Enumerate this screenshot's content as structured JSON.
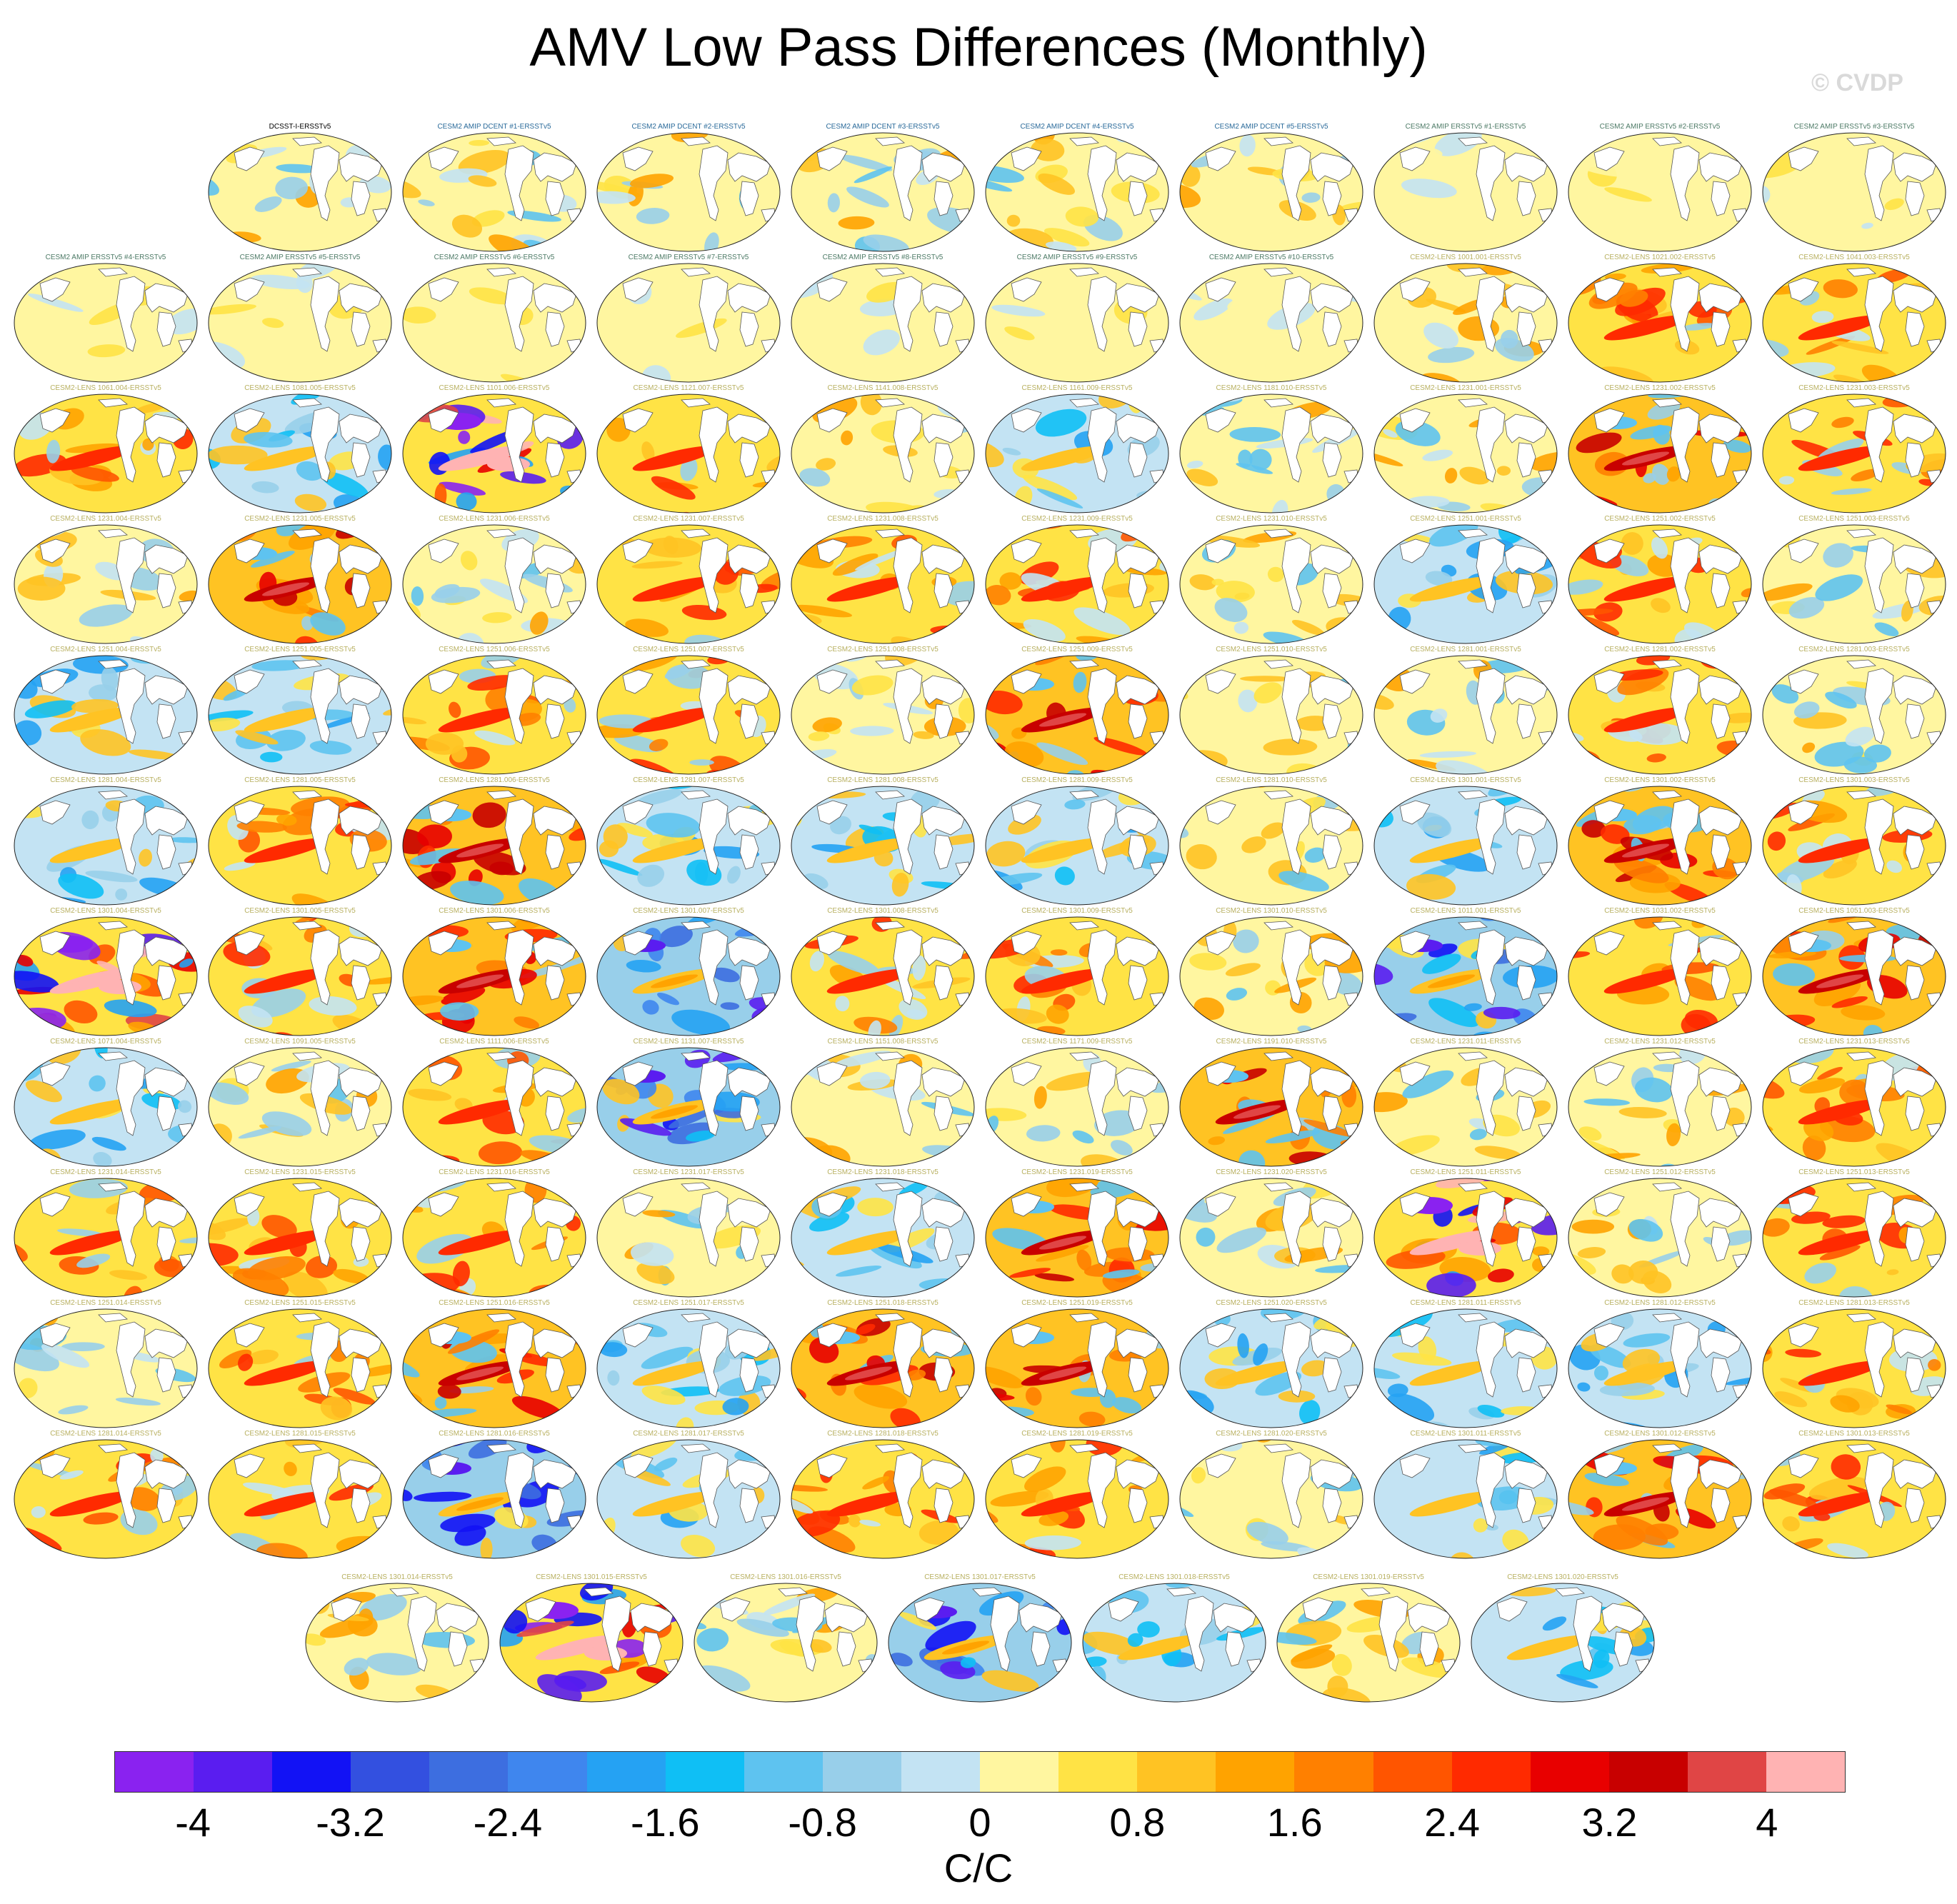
{
  "title": "AMV Low Pass Differences (Monthly)",
  "watermark": "© CVDP",
  "units": "C/C",
  "colorbar": {
    "colors": [
      "#8a22f0",
      "#5a1df0",
      "#1212f5",
      "#3350e0",
      "#3d6ee0",
      "#3f86ee",
      "#25a2f3",
      "#0fbff5",
      "#5ec3f0",
      "#98cfea",
      "#c3e3f3",
      "#fff6a0",
      "#ffe345",
      "#ffc323",
      "#ffa300",
      "#ff8000",
      "#ff5500",
      "#ff2a00",
      "#e80000",
      "#c80000",
      "#e04545",
      "#ffb3b3"
    ],
    "ticks": [
      "-4",
      "-3.2",
      "-2.4",
      "-1.6",
      "-0.8",
      "0",
      "0.8",
      "1.6",
      "2.4",
      "3.2",
      "4"
    ]
  },
  "label_colors": {
    "obs": "#000000",
    "dcent": "#2a6a9a",
    "amip": "#4d7a66",
    "lens": "#b8b060"
  },
  "panels": [
    {
      "label": "DCSST-I-ERSSTv5",
      "group": "obs",
      "style": "mixed"
    },
    {
      "label": "CESM2 AMIP DCENT #1-ERSSTv5",
      "group": "dcent",
      "style": "mixed"
    },
    {
      "label": "CESM2 AMIP DCENT #2-ERSSTv5",
      "group": "dcent",
      "style": "mixed"
    },
    {
      "label": "CESM2 AMIP DCENT #3-ERSSTv5",
      "group": "dcent",
      "style": "mixed"
    },
    {
      "label": "CESM2 AMIP DCENT #4-ERSSTv5",
      "group": "dcent",
      "style": "mixed"
    },
    {
      "label": "CESM2 AMIP DCENT #5-ERSSTv5",
      "group": "dcent",
      "style": "mixed"
    },
    {
      "label": "CESM2 AMIP ERSSTv5 #1-ERSSTv5",
      "group": "amip",
      "style": "flat"
    },
    {
      "label": "CESM2 AMIP ERSSTv5 #2-ERSSTv5",
      "group": "amip",
      "style": "flat"
    },
    {
      "label": "CESM2 AMIP ERSSTv5 #3-ERSSTv5",
      "group": "amip",
      "style": "flat"
    },
    {
      "label": "CESM2 AMIP ERSSTv5 #4-ERSSTv5",
      "group": "amip",
      "style": "flat"
    },
    {
      "label": "CESM2 AMIP ERSSTv5 #5-ERSSTv5",
      "group": "amip",
      "style": "flat"
    },
    {
      "label": "CESM2 AMIP ERSSTv5 #6-ERSSTv5",
      "group": "amip",
      "style": "flat"
    },
    {
      "label": "CESM2 AMIP ERSSTv5 #7-ERSSTv5",
      "group": "amip",
      "style": "flat"
    },
    {
      "label": "CESM2 AMIP ERSSTv5 #8-ERSSTv5",
      "group": "amip",
      "style": "flat"
    },
    {
      "label": "CESM2 AMIP ERSSTv5 #9-ERSSTv5",
      "group": "amip",
      "style": "flat"
    },
    {
      "label": "CESM2 AMIP ERSSTv5 #10-ERSSTv5",
      "group": "amip",
      "style": "flat"
    },
    {
      "label": "CESM2-LENS 1001.001-ERSSTv5",
      "group": "lens",
      "style": "mixed"
    },
    {
      "label": "CESM2-LENS 1021.002-ERSSTv5",
      "group": "lens",
      "style": "warm"
    },
    {
      "label": "CESM2-LENS 1041.003-ERSSTv5",
      "group": "lens",
      "style": "warm"
    },
    {
      "label": "CESM2-LENS 1061.004-ERSSTv5",
      "group": "lens",
      "style": "warm"
    },
    {
      "label": "CESM2-LENS 1081.005-ERSSTv5",
      "group": "lens",
      "style": "cool"
    },
    {
      "label": "CESM2-LENS 1101.006-ERSSTv5",
      "group": "lens",
      "style": "strong"
    },
    {
      "label": "CESM2-LENS 1121.007-ERSSTv5",
      "group": "lens",
      "style": "warm"
    },
    {
      "label": "CESM2-LENS 1141.008-ERSSTv5",
      "group": "lens",
      "style": "mixed"
    },
    {
      "label": "CESM2-LENS 1161.009-ERSSTv5",
      "group": "lens",
      "style": "cool"
    },
    {
      "label": "CESM2-LENS 1181.010-ERSSTv5",
      "group": "lens",
      "style": "mixed"
    },
    {
      "label": "CESM2-LENS 1231.001-ERSSTv5",
      "group": "lens",
      "style": "mixed"
    },
    {
      "label": "CESM2-LENS 1231.002-ERSSTv5",
      "group": "lens",
      "style": "strongwarm"
    },
    {
      "label": "CESM2-LENS 1231.003-ERSSTv5",
      "group": "lens",
      "style": "warm"
    },
    {
      "label": "CESM2-LENS 1231.004-ERSSTv5",
      "group": "lens",
      "style": "mixed"
    },
    {
      "label": "CESM2-LENS 1231.005-ERSSTv5",
      "group": "lens",
      "style": "strongwarm"
    },
    {
      "label": "CESM2-LENS 1231.006-ERSSTv5",
      "group": "lens",
      "style": "mixed"
    },
    {
      "label": "CESM2-LENS 1231.007-ERSSTv5",
      "group": "lens",
      "style": "warm"
    },
    {
      "label": "CESM2-LENS 1231.008-ERSSTv5",
      "group": "lens",
      "style": "warm"
    },
    {
      "label": "CESM2-LENS 1231.009-ERSSTv5",
      "group": "lens",
      "style": "warm"
    },
    {
      "label": "CESM2-LENS 1231.010-ERSSTv5",
      "group": "lens",
      "style": "mixed"
    },
    {
      "label": "CESM2-LENS 1251.001-ERSSTv5",
      "group": "lens",
      "style": "cool"
    },
    {
      "label": "CESM2-LENS 1251.002-ERSSTv5",
      "group": "lens",
      "style": "warm"
    },
    {
      "label": "CESM2-LENS 1251.003-ERSSTv5",
      "group": "lens",
      "style": "mixed"
    },
    {
      "label": "CESM2-LENS 1251.004-ERSSTv5",
      "group": "lens",
      "style": "cool"
    },
    {
      "label": "CESM2-LENS 1251.005-ERSSTv5",
      "group": "lens",
      "style": "cool"
    },
    {
      "label": "CESM2-LENS 1251.006-ERSSTv5",
      "group": "lens",
      "style": "warm"
    },
    {
      "label": "CESM2-LENS 1251.007-ERSSTv5",
      "group": "lens",
      "style": "warm"
    },
    {
      "label": "CESM2-LENS 1251.008-ERSSTv5",
      "group": "lens",
      "style": "mixed"
    },
    {
      "label": "CESM2-LENS 1251.009-ERSSTv5",
      "group": "lens",
      "style": "strongwarm"
    },
    {
      "label": "CESM2-LENS 1251.010-ERSSTv5",
      "group": "lens",
      "style": "mixed"
    },
    {
      "label": "CESM2-LENS 1281.001-ERSSTv5",
      "group": "lens",
      "style": "mixed"
    },
    {
      "label": "CESM2-LENS 1281.002-ERSSTv5",
      "group": "lens",
      "style": "warm"
    },
    {
      "label": "CESM2-LENS 1281.003-ERSSTv5",
      "group": "lens",
      "style": "mixed"
    },
    {
      "label": "CESM2-LENS 1281.004-ERSSTv5",
      "group": "lens",
      "style": "cool"
    },
    {
      "label": "CESM2-LENS 1281.005-ERSSTv5",
      "group": "lens",
      "style": "warm"
    },
    {
      "label": "CESM2-LENS 1281.006-ERSSTv5",
      "group": "lens",
      "style": "strongwarm"
    },
    {
      "label": "CESM2-LENS 1281.007-ERSSTv5",
      "group": "lens",
      "style": "cool"
    },
    {
      "label": "CESM2-LENS 1281.008-ERSSTv5",
      "group": "lens",
      "style": "cool"
    },
    {
      "label": "CESM2-LENS 1281.009-ERSSTv5",
      "group": "lens",
      "style": "cool"
    },
    {
      "label": "CESM2-LENS 1281.010-ERSSTv5",
      "group": "lens",
      "style": "mixed"
    },
    {
      "label": "CESM2-LENS 1301.001-ERSSTv5",
      "group": "lens",
      "style": "cool"
    },
    {
      "label": "CESM2-LENS 1301.002-ERSSTv5",
      "group": "lens",
      "style": "strongwarm"
    },
    {
      "label": "CESM2-LENS 1301.003-ERSSTv5",
      "group": "lens",
      "style": "warm"
    },
    {
      "label": "CESM2-LENS 1301.004-ERSSTv5",
      "group": "lens",
      "style": "strong"
    },
    {
      "label": "CESM2-LENS 1301.005-ERSSTv5",
      "group": "lens",
      "style": "warm"
    },
    {
      "label": "CESM2-LENS 1301.006-ERSSTv5",
      "group": "lens",
      "style": "strongwarm"
    },
    {
      "label": "CESM2-LENS 1301.007-ERSSTv5",
      "group": "lens",
      "style": "strongcool"
    },
    {
      "label": "CESM2-LENS 1301.008-ERSSTv5",
      "group": "lens",
      "style": "warm"
    },
    {
      "label": "CESM2-LENS 1301.009-ERSSTv5",
      "group": "lens",
      "style": "warm"
    },
    {
      "label": "CESM2-LENS 1301.010-ERSSTv5",
      "group": "lens",
      "style": "mixed"
    },
    {
      "label": "CESM2-LENS 1011.001-ERSSTv5",
      "group": "lens",
      "style": "strongcool"
    },
    {
      "label": "CESM2-LENS 1031.002-ERSSTv5",
      "group": "lens",
      "style": "warm"
    },
    {
      "label": "CESM2-LENS 1051.003-ERSSTv5",
      "group": "lens",
      "style": "strongwarm"
    },
    {
      "label": "CESM2-LENS 1071.004-ERSSTv5",
      "group": "lens",
      "style": "cool"
    },
    {
      "label": "CESM2-LENS 1091.005-ERSSTv5",
      "group": "lens",
      "style": "mixed"
    },
    {
      "label": "CESM2-LENS 1111.006-ERSSTv5",
      "group": "lens",
      "style": "warm"
    },
    {
      "label": "CESM2-LENS 1131.007-ERSSTv5",
      "group": "lens",
      "style": "strongcool"
    },
    {
      "label": "CESM2-LENS 1151.008-ERSSTv5",
      "group": "lens",
      "style": "mixed"
    },
    {
      "label": "CESM2-LENS 1171.009-ERSSTv5",
      "group": "lens",
      "style": "mixed"
    },
    {
      "label": "CESM2-LENS 1191.010-ERSSTv5",
      "group": "lens",
      "style": "strongwarm"
    },
    {
      "label": "CESM2-LENS 1231.011-ERSSTv5",
      "group": "lens",
      "style": "mixed"
    },
    {
      "label": "CESM2-LENS 1231.012-ERSSTv5",
      "group": "lens",
      "style": "mixed"
    },
    {
      "label": "CESM2-LENS 1231.013-ERSSTv5",
      "group": "lens",
      "style": "warm"
    },
    {
      "label": "CESM2-LENS 1231.014-ERSSTv5",
      "group": "lens",
      "style": "warm"
    },
    {
      "label": "CESM2-LENS 1231.015-ERSSTv5",
      "group": "lens",
      "style": "warm"
    },
    {
      "label": "CESM2-LENS 1231.016-ERSSTv5",
      "group": "lens",
      "style": "warm"
    },
    {
      "label": "CESM2-LENS 1231.017-ERSSTv5",
      "group": "lens",
      "style": "mixed"
    },
    {
      "label": "CESM2-LENS 1231.018-ERSSTv5",
      "group": "lens",
      "style": "cool"
    },
    {
      "label": "CESM2-LENS 1231.019-ERSSTv5",
      "group": "lens",
      "style": "strongwarm"
    },
    {
      "label": "CESM2-LENS 1231.020-ERSSTv5",
      "group": "lens",
      "style": "mixed"
    },
    {
      "label": "CESM2-LENS 1251.011-ERSSTv5",
      "group": "lens",
      "style": "strong"
    },
    {
      "label": "CESM2-LENS 1251.012-ERSSTv5",
      "group": "lens",
      "style": "mixed"
    },
    {
      "label": "CESM2-LENS 1251.013-ERSSTv5",
      "group": "lens",
      "style": "warm"
    },
    {
      "label": "CESM2-LENS 1251.014-ERSSTv5",
      "group": "lens",
      "style": "mixed"
    },
    {
      "label": "CESM2-LENS 1251.015-ERSSTv5",
      "group": "lens",
      "style": "warm"
    },
    {
      "label": "CESM2-LENS 1251.016-ERSSTv5",
      "group": "lens",
      "style": "strongwarm"
    },
    {
      "label": "CESM2-LENS 1251.017-ERSSTv5",
      "group": "lens",
      "style": "cool"
    },
    {
      "label": "CESM2-LENS 1251.018-ERSSTv5",
      "group": "lens",
      "style": "strongwarm"
    },
    {
      "label": "CESM2-LENS 1251.019-ERSSTv5",
      "group": "lens",
      "style": "strongwarm"
    },
    {
      "label": "CESM2-LENS 1251.020-ERSSTv5",
      "group": "lens",
      "style": "cool"
    },
    {
      "label": "CESM2-LENS 1281.011-ERSSTv5",
      "group": "lens",
      "style": "cool"
    },
    {
      "label": "CESM2-LENS 1281.012-ERSSTv5",
      "group": "lens",
      "style": "cool"
    },
    {
      "label": "CESM2-LENS 1281.013-ERSSTv5",
      "group": "lens",
      "style": "warm"
    },
    {
      "label": "CESM2-LENS 1281.014-ERSSTv5",
      "group": "lens",
      "style": "warm"
    },
    {
      "label": "CESM2-LENS 1281.015-ERSSTv5",
      "group": "lens",
      "style": "warm"
    },
    {
      "label": "CESM2-LENS 1281.016-ERSSTv5",
      "group": "lens",
      "style": "strongcool"
    },
    {
      "label": "CESM2-LENS 1281.017-ERSSTv5",
      "group": "lens",
      "style": "cool"
    },
    {
      "label": "CESM2-LENS 1281.018-ERSSTv5",
      "group": "lens",
      "style": "warm"
    },
    {
      "label": "CESM2-LENS 1281.019-ERSSTv5",
      "group": "lens",
      "style": "warm"
    },
    {
      "label": "CESM2-LENS 1281.020-ERSSTv5",
      "group": "lens",
      "style": "mixed"
    },
    {
      "label": "CESM2-LENS 1301.011-ERSSTv5",
      "group": "lens",
      "style": "cool"
    },
    {
      "label": "CESM2-LENS 1301.012-ERSSTv5",
      "group": "lens",
      "style": "strongwarm"
    },
    {
      "label": "CESM2-LENS 1301.013-ERSSTv5",
      "group": "lens",
      "style": "warm"
    },
    {
      "label": "CESM2-LENS 1301.014-ERSSTv5",
      "group": "lens",
      "style": "mixed"
    },
    {
      "label": "CESM2-LENS 1301.015-ERSSTv5",
      "group": "lens",
      "style": "strong"
    },
    {
      "label": "CESM2-LENS 1301.016-ERSSTv5",
      "group": "lens",
      "style": "mixed"
    },
    {
      "label": "CESM2-LENS 1301.017-ERSSTv5",
      "group": "lens",
      "style": "strongcool"
    },
    {
      "label": "CESM2-LENS 1301.018-ERSSTv5",
      "group": "lens",
      "style": "cool"
    },
    {
      "label": "CESM2-LENS 1301.019-ERSSTv5",
      "group": "lens",
      "style": "mixed"
    },
    {
      "label": "CESM2-LENS 1301.020-ERSSTv5",
      "group": "lens",
      "style": "cool"
    }
  ]
}
